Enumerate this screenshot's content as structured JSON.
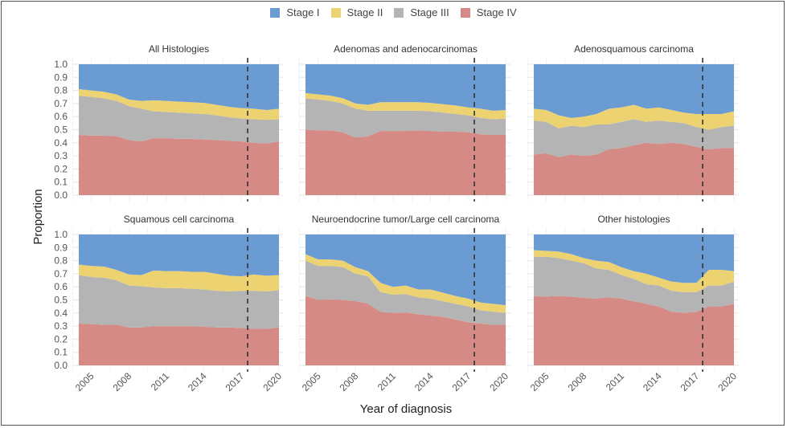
{
  "chart_data": {
    "type": "area",
    "stacked": true,
    "xlabel": "Year of diagnosis",
    "ylabel": "Proportion",
    "ylim": [
      0,
      1
    ],
    "yticks": [
      "0.0",
      "0.1",
      "0.2",
      "0.3",
      "0.4",
      "0.5",
      "0.6",
      "0.7",
      "0.8",
      "0.9",
      "1.0"
    ],
    "xticks": [
      "2005",
      "2008",
      "2011",
      "2014",
      "2017",
      "2020"
    ],
    "x": [
      2004,
      2005,
      2006,
      2007,
      2008,
      2009,
      2010,
      2011,
      2012,
      2013,
      2014,
      2015,
      2016,
      2017,
      2018,
      2019,
      2020
    ],
    "xlim": [
      2004,
      2020
    ],
    "reference_line": {
      "x": 2017.5,
      "style": "dashed"
    },
    "grid": true,
    "legend": {
      "position": "top",
      "entries": [
        "Stage I",
        "Stage II",
        "Stage III",
        "Stage IV"
      ]
    },
    "colors": {
      "Stage I": "#6b9bd3",
      "Stage II": "#ecd271",
      "Stage III": "#b4b4b4",
      "Stage IV": "#d68a85"
    },
    "panels": [
      {
        "title": "All Histologies",
        "series": [
          {
            "name": "Stage IV",
            "values": [
              0.46,
              0.455,
              0.455,
              0.45,
              0.42,
              0.41,
              0.435,
              0.435,
              0.43,
              0.43,
              0.425,
              0.42,
              0.415,
              0.41,
              0.4,
              0.395,
              0.41
            ]
          },
          {
            "name": "Stage III",
            "values": [
              0.3,
              0.295,
              0.285,
              0.27,
              0.26,
              0.25,
              0.205,
              0.2,
              0.2,
              0.195,
              0.195,
              0.19,
              0.18,
              0.175,
              0.18,
              0.18,
              0.17
            ]
          },
          {
            "name": "Stage II",
            "values": [
              0.05,
              0.05,
              0.05,
              0.05,
              0.05,
              0.06,
              0.085,
              0.085,
              0.085,
              0.085,
              0.085,
              0.08,
              0.08,
              0.08,
              0.08,
              0.075,
              0.08
            ]
          },
          {
            "name": "Stage I",
            "values": [
              0.19,
              0.2,
              0.21,
              0.23,
              0.27,
              0.28,
              0.275,
              0.28,
              0.285,
              0.29,
              0.295,
              0.31,
              0.325,
              0.335,
              0.34,
              0.35,
              0.34
            ]
          }
        ]
      },
      {
        "title": "Adenomas and adenocarcinomas",
        "series": [
          {
            "name": "Stage IV",
            "values": [
              0.5,
              0.495,
              0.495,
              0.48,
              0.44,
              0.45,
              0.49,
              0.49,
              0.49,
              0.495,
              0.49,
              0.485,
              0.485,
              0.48,
              0.465,
              0.46,
              0.46
            ]
          },
          {
            "name": "Stage III",
            "values": [
              0.24,
              0.235,
              0.225,
              0.22,
              0.22,
              0.195,
              0.155,
              0.155,
              0.155,
              0.15,
              0.15,
              0.145,
              0.135,
              0.13,
              0.125,
              0.12,
              0.125
            ]
          },
          {
            "name": "Stage II",
            "values": [
              0.04,
              0.04,
              0.04,
              0.04,
              0.04,
              0.045,
              0.065,
              0.065,
              0.065,
              0.065,
              0.065,
              0.065,
              0.065,
              0.06,
              0.07,
              0.065,
              0.065
            ]
          },
          {
            "name": "Stage I",
            "values": [
              0.22,
              0.23,
              0.24,
              0.26,
              0.3,
              0.31,
              0.29,
              0.29,
              0.29,
              0.29,
              0.295,
              0.305,
              0.315,
              0.33,
              0.34,
              0.355,
              0.35
            ]
          }
        ]
      },
      {
        "title": "Adenosquamous carcinoma",
        "series": [
          {
            "name": "Stage IV",
            "values": [
              0.31,
              0.32,
              0.29,
              0.31,
              0.3,
              0.31,
              0.35,
              0.36,
              0.38,
              0.4,
              0.39,
              0.4,
              0.39,
              0.37,
              0.35,
              0.36,
              0.36
            ]
          },
          {
            "name": "Stage III",
            "values": [
              0.26,
              0.24,
              0.22,
              0.22,
              0.22,
              0.23,
              0.19,
              0.2,
              0.2,
              0.16,
              0.18,
              0.16,
              0.16,
              0.15,
              0.15,
              0.16,
              0.17
            ]
          },
          {
            "name": "Stage II",
            "values": [
              0.09,
              0.09,
              0.1,
              0.06,
              0.08,
              0.08,
              0.12,
              0.11,
              0.11,
              0.1,
              0.1,
              0.09,
              0.08,
              0.1,
              0.12,
              0.1,
              0.11
            ]
          },
          {
            "name": "Stage I",
            "values": [
              0.34,
              0.35,
              0.39,
              0.41,
              0.4,
              0.38,
              0.34,
              0.33,
              0.31,
              0.34,
              0.33,
              0.35,
              0.37,
              0.38,
              0.38,
              0.38,
              0.36
            ]
          }
        ]
      },
      {
        "title": "Squamous cell carcinoma",
        "series": [
          {
            "name": "Stage IV",
            "values": [
              0.32,
              0.315,
              0.31,
              0.31,
              0.29,
              0.29,
              0.3,
              0.3,
              0.3,
              0.3,
              0.295,
              0.29,
              0.29,
              0.285,
              0.28,
              0.28,
              0.29
            ]
          },
          {
            "name": "Stage III",
            "values": [
              0.37,
              0.36,
              0.36,
              0.34,
              0.32,
              0.315,
              0.295,
              0.29,
              0.29,
              0.285,
              0.285,
              0.28,
              0.275,
              0.285,
              0.29,
              0.285,
              0.285
            ]
          },
          {
            "name": "Stage II",
            "values": [
              0.08,
              0.085,
              0.085,
              0.08,
              0.085,
              0.085,
              0.13,
              0.13,
              0.13,
              0.13,
              0.135,
              0.13,
              0.12,
              0.11,
              0.125,
              0.12,
              0.115
            ]
          },
          {
            "name": "Stage I",
            "values": [
              0.23,
              0.24,
              0.245,
              0.27,
              0.305,
              0.31,
              0.275,
              0.28,
              0.28,
              0.285,
              0.285,
              0.3,
              0.315,
              0.32,
              0.305,
              0.315,
              0.31
            ]
          }
        ]
      },
      {
        "title": "Neuroendocrine tumor/Large cell carcinoma",
        "series": [
          {
            "name": "Stage IV",
            "values": [
              0.53,
              0.5,
              0.505,
              0.5,
              0.49,
              0.47,
              0.41,
              0.4,
              0.405,
              0.39,
              0.38,
              0.37,
              0.35,
              0.33,
              0.32,
              0.31,
              0.31
            ]
          },
          {
            "name": "Stage III",
            "values": [
              0.27,
              0.26,
              0.255,
              0.25,
              0.21,
              0.21,
              0.15,
              0.14,
              0.14,
              0.13,
              0.13,
              0.12,
              0.12,
              0.12,
              0.1,
              0.1,
              0.09
            ]
          },
          {
            "name": "Stage II",
            "values": [
              0.05,
              0.05,
              0.05,
              0.05,
              0.05,
              0.04,
              0.07,
              0.06,
              0.065,
              0.06,
              0.07,
              0.065,
              0.06,
              0.06,
              0.06,
              0.06,
              0.06
            ]
          },
          {
            "name": "Stage I",
            "values": [
              0.15,
              0.19,
              0.19,
              0.2,
              0.25,
              0.28,
              0.37,
              0.4,
              0.39,
              0.42,
              0.42,
              0.445,
              0.47,
              0.49,
              0.52,
              0.53,
              0.54
            ]
          }
        ]
      },
      {
        "title": "Other histologies",
        "series": [
          {
            "name": "Stage IV",
            "values": [
              0.53,
              0.525,
              0.53,
              0.525,
              0.515,
              0.51,
              0.52,
              0.51,
              0.49,
              0.47,
              0.45,
              0.41,
              0.4,
              0.41,
              0.45,
              0.45,
              0.47
            ]
          },
          {
            "name": "Stage III",
            "values": [
              0.3,
              0.305,
              0.29,
              0.275,
              0.265,
              0.23,
              0.21,
              0.18,
              0.17,
              0.15,
              0.16,
              0.16,
              0.16,
              0.15,
              0.16,
              0.16,
              0.17
            ]
          },
          {
            "name": "Stage II",
            "values": [
              0.05,
              0.045,
              0.05,
              0.05,
              0.04,
              0.06,
              0.06,
              0.06,
              0.06,
              0.08,
              0.06,
              0.07,
              0.07,
              0.07,
              0.12,
              0.12,
              0.08
            ]
          },
          {
            "name": "Stage I",
            "values": [
              0.12,
              0.125,
              0.13,
              0.15,
              0.18,
              0.2,
              0.21,
              0.25,
              0.28,
              0.3,
              0.33,
              0.36,
              0.37,
              0.37,
              0.27,
              0.27,
              0.28
            ]
          }
        ]
      }
    ]
  }
}
